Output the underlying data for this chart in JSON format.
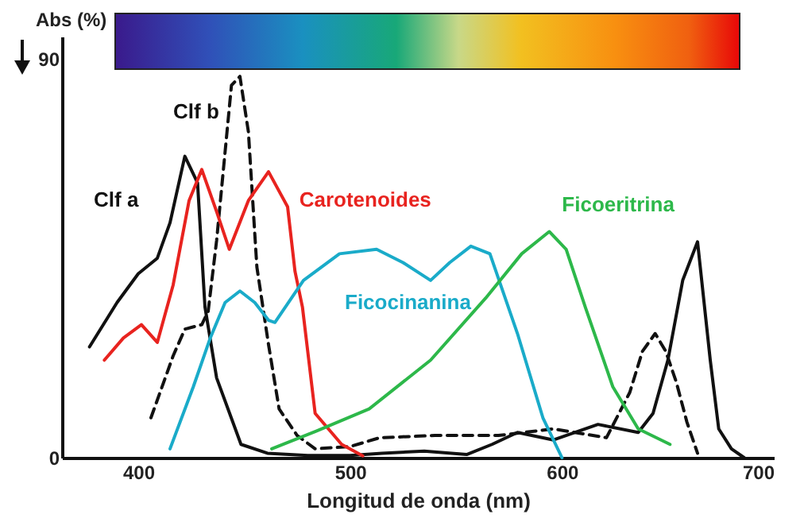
{
  "chart_data": {
    "type": "line",
    "xlabel": "Longitud de onda (nm)",
    "ylabel": "Abs (%)",
    "xlim": [
      364,
      700
    ],
    "ylim": [
      0,
      95
    ],
    "xticks": [
      400,
      500,
      600,
      700
    ],
    "yticks": [
      0,
      90
    ],
    "grid": false,
    "marker": "none",
    "series": [
      {
        "name": "Clf a",
        "color": "#111111",
        "line_style": "solid",
        "x": [
          377,
          390,
          400,
          409,
          415,
          422,
          428,
          431.5,
          437,
          448.5,
          461,
          480,
          500,
          515,
          535,
          555,
          567,
          579,
          596,
          617,
          636,
          643,
          650,
          657,
          664,
          670,
          674,
          680,
          686
        ],
        "values": [
          25,
          35,
          41.5,
          45,
          53,
          68,
          62,
          34,
          18,
          3,
          1,
          0.5,
          0.5,
          1,
          1.5,
          0.7,
          3,
          5.7,
          4,
          7.5,
          5.7,
          10,
          22,
          40,
          48.7,
          22,
          6.5,
          2,
          0
        ]
      },
      {
        "name": "Clf b",
        "color": "#111111",
        "line_style": "dashed",
        "x": [
          406,
          416.5,
          422,
          430,
          433,
          437,
          444,
          448,
          452,
          456,
          461.5,
          466.5,
          475,
          483.5,
          500,
          514,
          540,
          570,
          596,
          621,
          632,
          638,
          644,
          649,
          654,
          659,
          664
        ],
        "values": [
          9,
          23,
          29,
          30,
          33,
          49,
          84,
          86,
          73.5,
          43,
          25.5,
          11,
          5,
          2,
          2.5,
          4.5,
          5,
          5,
          6.5,
          4.5,
          14.7,
          24,
          28,
          24,
          17,
          8,
          1
        ]
      },
      {
        "name": "Carotenoides",
        "color": "#e8231f",
        "line_style": "solid",
        "x": [
          384,
          393,
          401.5,
          409,
          416.5,
          424,
          430,
          437,
          443,
          452,
          461.5,
          470.5,
          474,
          477.5,
          483.5,
          496,
          506
        ],
        "values": [
          22,
          27,
          30,
          26,
          39,
          58,
          65,
          55.5,
          47,
          58,
          64.5,
          56.6,
          42,
          34,
          10,
          3,
          0.4
        ]
      },
      {
        "name": "Ficocinanina",
        "color": "#1aabc9",
        "line_style": "solid",
        "x": [
          415,
          426,
          434,
          441,
          448,
          455,
          461.5,
          464.5,
          478,
          495,
          512.5,
          525,
          538,
          547,
          557,
          566,
          579,
          591,
          600
        ],
        "values": [
          2,
          16,
          27,
          35,
          37.6,
          35,
          31,
          30.5,
          40,
          46,
          47,
          44,
          40,
          44,
          47.7,
          46,
          28,
          9,
          0
        ]
      },
      {
        "name": "Ficoeritrina",
        "color": "#2db84a",
        "line_style": "solid",
        "x": [
          463,
          484,
          509,
          538,
          564,
          581,
          594,
          602,
          611,
          624,
          636,
          651
        ],
        "values": [
          2,
          6,
          11,
          22,
          36,
          46,
          51,
          47,
          34,
          16,
          6.5,
          3
        ]
      }
    ]
  }
}
